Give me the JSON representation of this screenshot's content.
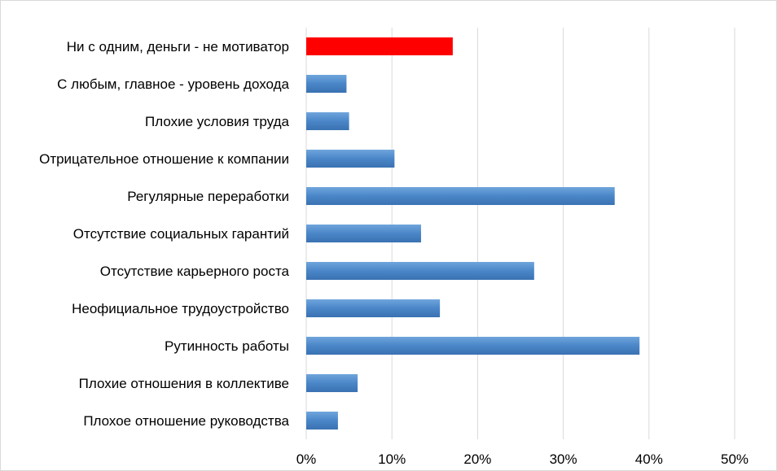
{
  "chart_data": {
    "type": "bar",
    "orientation": "horizontal",
    "title": "",
    "xlabel": "",
    "ylabel": "",
    "categories": [
      "Ни с одним, деньги - не мотиватор",
      "С любым, главное - уровень дохода",
      "Плохие условия труда",
      "Отрицательное отношение  к компании",
      "Регулярные переработки",
      "Отсутствие социальных гарантий",
      "Отсутствие карьерного роста",
      "Неофициальное трудоустройство",
      "Рутинность работы",
      "Плохие отношения  в коллективе",
      "Плохое отношение  руководства"
    ],
    "values": [
      0.171,
      0.047,
      0.05,
      0.103,
      0.36,
      0.134,
      0.266,
      0.156,
      0.389,
      0.06,
      0.037
    ],
    "bar_colors": [
      "#ff0000",
      "#4a86c8",
      "#4a86c8",
      "#4a86c8",
      "#4a86c8",
      "#4a86c8",
      "#4a86c8",
      "#4a86c8",
      "#4a86c8",
      "#4a86c8",
      "#4a86c8"
    ],
    "xlim": [
      0,
      0.5
    ],
    "x_ticks": [
      0,
      0.1,
      0.2,
      0.3,
      0.4,
      0.5
    ],
    "x_tick_labels": [
      "0%",
      "10%",
      "20%",
      "30%",
      "40%",
      "50%"
    ],
    "grid": "vertical",
    "gridline_color": "#d9d9d9",
    "legend": "none"
  }
}
